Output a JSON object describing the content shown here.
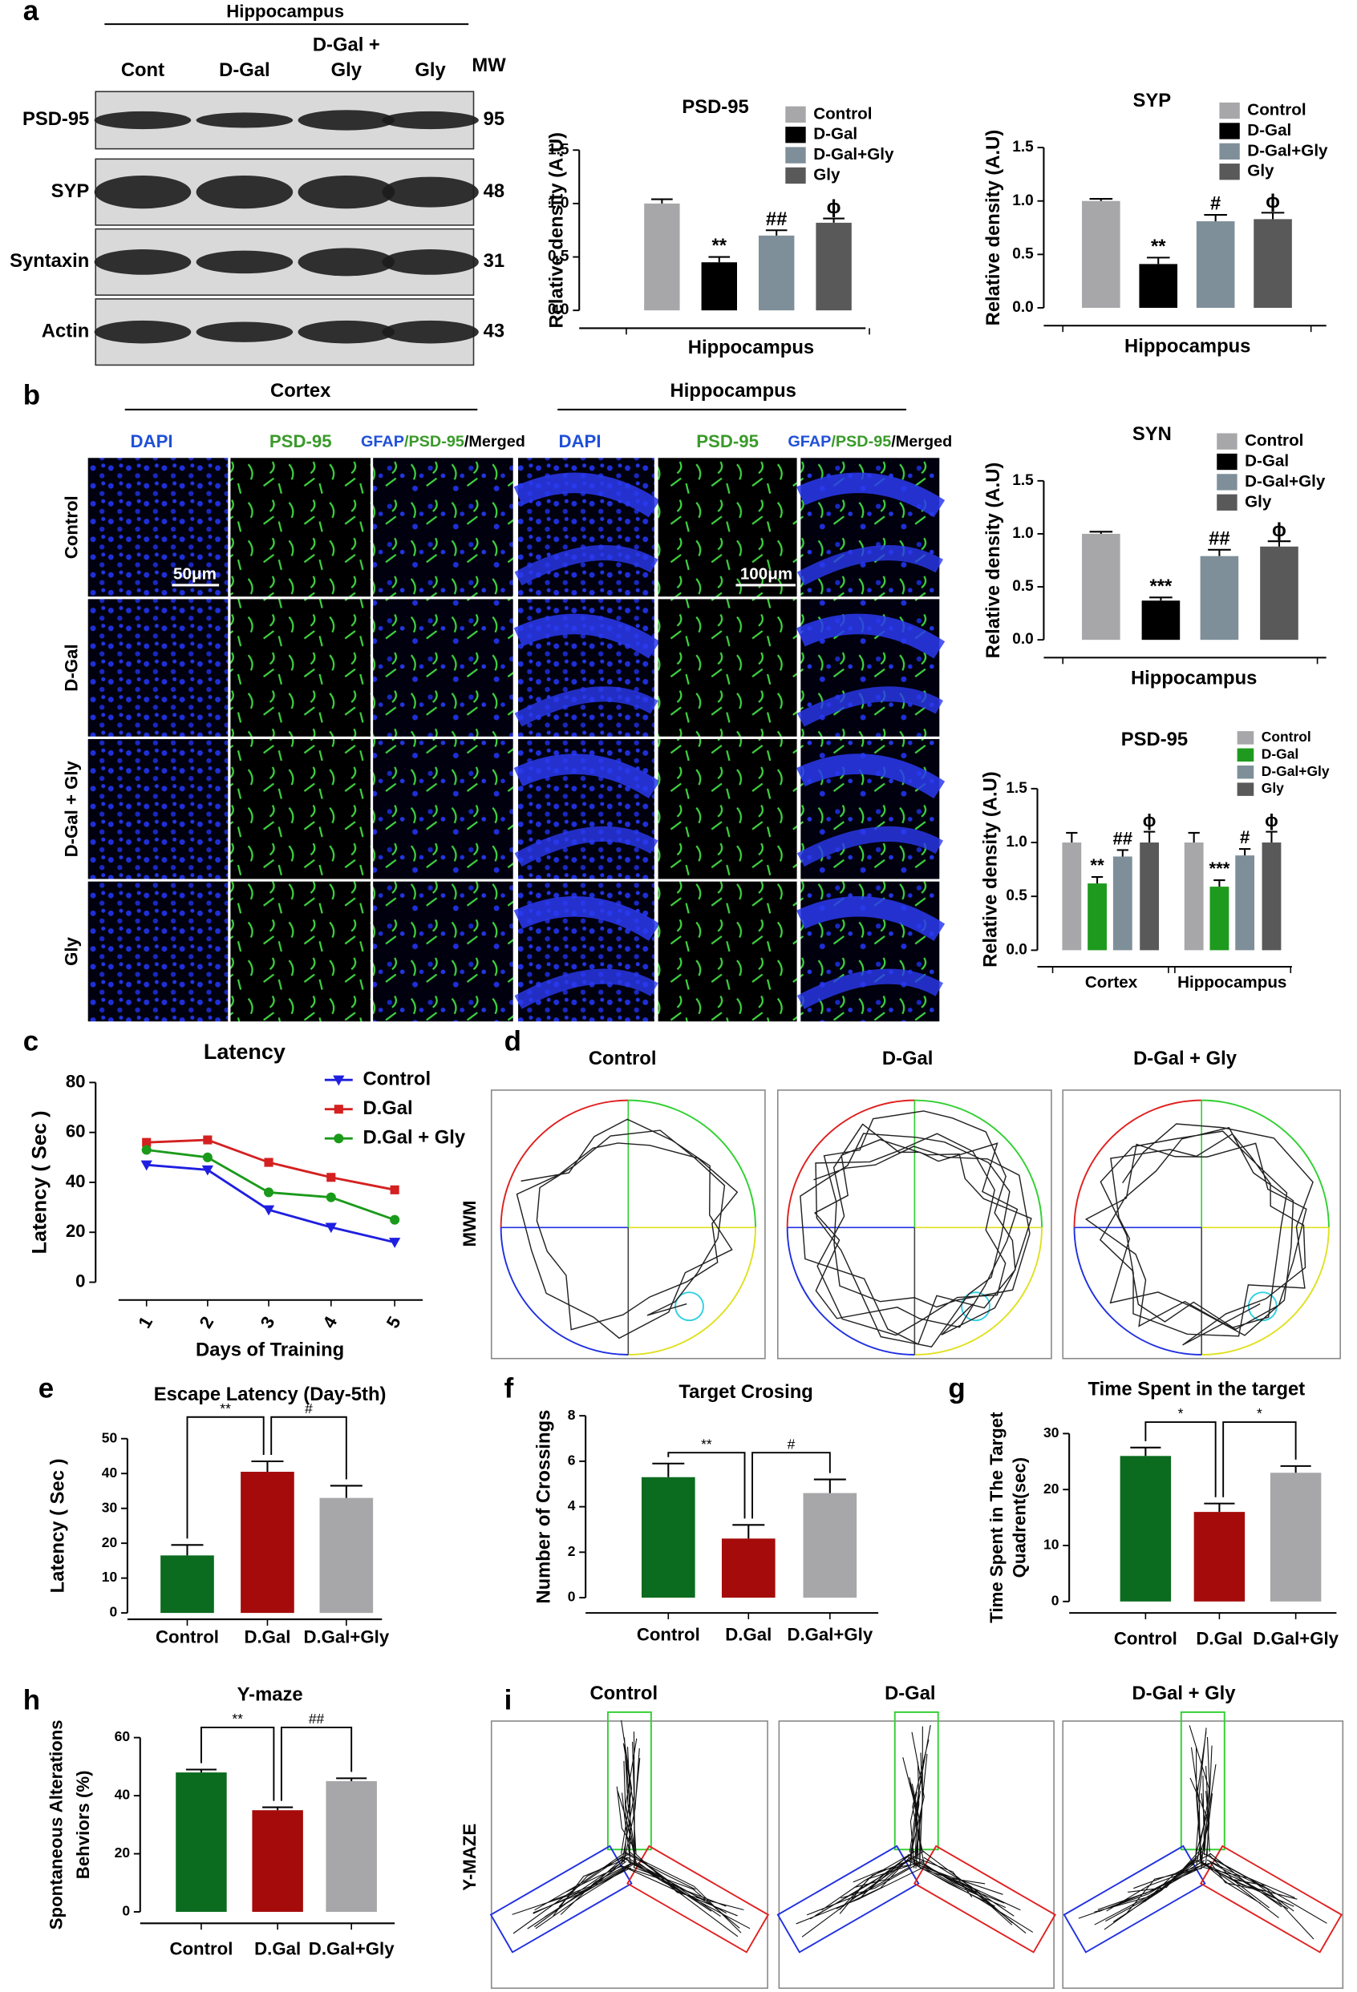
{
  "figure": {
    "panel_labels": [
      "a",
      "b",
      "c",
      "d",
      "e",
      "f",
      "g",
      "h",
      "i"
    ],
    "blot": {
      "region": "Hippocampus",
      "lane_labels": [
        [
          "Cont"
        ],
        [
          "D-Gal"
        ],
        [
          "D-Gal +",
          "Gly"
        ],
        [
          "Gly"
        ]
      ],
      "mw_header": "MW",
      "rows": [
        {
          "protein": "PSD-95",
          "mw": 95
        },
        {
          "protein": "SYP",
          "mw": 48
        },
        {
          "protein": "Syntaxin",
          "mw": 31
        },
        {
          "protein": "Actin",
          "mw": 43
        }
      ]
    },
    "microscopy": {
      "regions": [
        "Cortex",
        "Hippocampus"
      ],
      "channel_headers": [
        "DAPI",
        "PSD-95"
      ],
      "merged_header": [
        "GFAP",
        "/PSD-95",
        "/Merged"
      ],
      "rows": [
        "Control",
        "D-Gal",
        "D-Gal + Gly",
        "Gly"
      ],
      "scale_bars": [
        "50μm",
        "100μm"
      ]
    },
    "mwm": {
      "side_label": "MWM",
      "groups": [
        "Control",
        "D-Gal",
        "D-Gal + Gly"
      ]
    },
    "ymaze": {
      "side_label": "Y-MAZE",
      "groups": [
        "Control",
        "D-Gal",
        "D-Gal + Gly"
      ]
    }
  },
  "chart_data": [
    {
      "type": "bar",
      "title": "PSD-95",
      "y_label": "Relative density (A.U)",
      "categories": [
        "Hippocampus"
      ],
      "series": [
        {
          "name": "Control",
          "color": "#a7a7a9",
          "values": [
            1.0
          ],
          "errors": [
            0.04
          ],
          "significance": [
            null
          ]
        },
        {
          "name": "D-Gal",
          "color": "#000000",
          "values": [
            0.45
          ],
          "errors": [
            0.05
          ],
          "significance": [
            "**"
          ]
        },
        {
          "name": "D-Gal+Gly",
          "color": "#7f8f99",
          "values": [
            0.7
          ],
          "errors": [
            0.05
          ],
          "significance": [
            "##"
          ]
        },
        {
          "name": "Gly",
          "color": "#595959",
          "values": [
            0.82
          ],
          "errors": [
            0.04
          ],
          "significance": [
            "ϕ"
          ]
        }
      ],
      "ylim": [
        0,
        1.5
      ],
      "yticks": [
        {
          "value": 0,
          "label": "0.0"
        },
        0.5,
        {
          "value": 1,
          "label": "1.0"
        },
        1.5
      ]
    },
    {
      "type": "bar",
      "title": "SYP",
      "y_label": "Relative density (A.U)",
      "categories": [
        "Hippocampus"
      ],
      "series": [
        {
          "name": "Control",
          "color": "#a7a7a9",
          "values": [
            1.0
          ],
          "errors": [
            0.02
          ],
          "significance": [
            null
          ]
        },
        {
          "name": "D-Gal",
          "color": "#000000",
          "values": [
            0.41
          ],
          "errors": [
            0.06
          ],
          "significance": [
            "**"
          ]
        },
        {
          "name": "D-Gal+Gly",
          "color": "#7f8f99",
          "values": [
            0.81
          ],
          "errors": [
            0.06
          ],
          "significance": [
            "#"
          ]
        },
        {
          "name": "Gly",
          "color": "#595959",
          "values": [
            0.83
          ],
          "errors": [
            0.06
          ],
          "significance": [
            "ϕ"
          ]
        }
      ],
      "ylim": [
        0,
        1.5
      ],
      "yticks": [
        {
          "value": 0,
          "label": "0.0"
        },
        0.5,
        {
          "value": 1,
          "label": "1.0"
        },
        1.5
      ]
    },
    {
      "type": "bar",
      "title": "SYN",
      "y_label": "Relative density (A.U)",
      "categories": [
        "Hippocampus"
      ],
      "series": [
        {
          "name": "Control",
          "color": "#a7a7a9",
          "values": [
            1.0
          ],
          "errors": [
            0.02
          ],
          "significance": [
            null
          ]
        },
        {
          "name": "D-Gal",
          "color": "#000000",
          "values": [
            0.37
          ],
          "errors": [
            0.03
          ],
          "significance": [
            "***"
          ]
        },
        {
          "name": "D-Gal+Gly",
          "color": "#7f8f99",
          "values": [
            0.79
          ],
          "errors": [
            0.06
          ],
          "significance": [
            "##"
          ]
        },
        {
          "name": "Gly",
          "color": "#595959",
          "values": [
            0.88
          ],
          "errors": [
            0.05
          ],
          "significance": [
            "ϕ"
          ]
        }
      ],
      "ylim": [
        0,
        1.5
      ],
      "yticks": [
        {
          "value": 0,
          "label": "0.0"
        },
        0.5,
        {
          "value": 1,
          "label": "1.0"
        },
        1.5
      ]
    },
    {
      "type": "bar",
      "title": "PSD-95",
      "y_label": "Relative density (A.U)",
      "categories": [
        "Cortex",
        "Hippocampus"
      ],
      "series": [
        {
          "name": "Control",
          "color": "#a7a7a9",
          "values": [
            1.0,
            1.0
          ],
          "errors": [
            0.09,
            0.09
          ],
          "significance": [
            null,
            null
          ]
        },
        {
          "name": "D-Gal",
          "color": "#1e9a1e",
          "values": [
            0.62,
            0.59
          ],
          "errors": [
            0.06,
            0.06
          ],
          "significance": [
            "**",
            "***"
          ]
        },
        {
          "name": "D-Gal+Gly",
          "color": "#7f8f99",
          "values": [
            0.87,
            0.88
          ],
          "errors": [
            0.06,
            0.06
          ],
          "significance": [
            "##",
            "#"
          ]
        },
        {
          "name": "Gly",
          "color": "#595959",
          "values": [
            1.0,
            1.0
          ],
          "errors": [
            0.1,
            0.1
          ],
          "significance": [
            "ϕ",
            "ϕ"
          ]
        }
      ],
      "ylim": [
        0,
        1.5
      ],
      "yticks": [
        {
          "value": 0,
          "label": "0.0"
        },
        0.5,
        {
          "value": 1,
          "label": "1.0"
        },
        1.5
      ]
    },
    {
      "type": "line",
      "title": "Latency",
      "x_label": "Days of Training",
      "y_label": "Latency ( Sec )",
      "categories": [
        "1",
        "2",
        "3",
        "4",
        "5"
      ],
      "series": [
        {
          "name": "Control",
          "color": "#1f1fe0",
          "marker": "triangle-down",
          "values": [
            47,
            45,
            29,
            22,
            16
          ]
        },
        {
          "name": "D.Gal",
          "color": "#d42020",
          "marker": "square",
          "values": [
            56,
            57,
            48,
            42,
            37
          ]
        },
        {
          "name": "D.Gal + Gly",
          "color": "#1a9a1a",
          "marker": "circle",
          "values": [
            53,
            50,
            36,
            34,
            25
          ]
        }
      ],
      "ylim": [
        0,
        80
      ],
      "yticks": [
        0,
        20,
        40,
        60,
        80
      ]
    },
    {
      "type": "bar",
      "title": "Escape Latency (Day-5th)",
      "y_label": "Latency ( Sec )",
      "categories": [
        "Control",
        "D.Gal",
        "D.Gal+Gly"
      ],
      "values": [
        16.5,
        40.5,
        33
      ],
      "errors": [
        3,
        3,
        3.5
      ],
      "colors": [
        "#0b6b1f",
        "#a50b0b",
        "#a7a7a9"
      ],
      "comparisons": [
        {
          "from": 0,
          "to": 1,
          "label": "**"
        },
        {
          "from": 1,
          "to": 2,
          "label": "#"
        }
      ],
      "ylim": [
        0,
        50
      ],
      "yticks": [
        0,
        10,
        20,
        30,
        40,
        50
      ]
    },
    {
      "type": "bar",
      "title": "Target Crosing",
      "y_label": "Number of Crossings",
      "categories": [
        "Control",
        "D.Gal",
        "D.Gal+Gly"
      ],
      "values": [
        5.3,
        2.6,
        4.6
      ],
      "errors": [
        0.6,
        0.6,
        0.6
      ],
      "colors": [
        "#0b6b1f",
        "#a50b0b",
        "#a7a7a9"
      ],
      "comparisons": [
        {
          "from": 0,
          "to": 1,
          "label": "**"
        },
        {
          "from": 1,
          "to": 2,
          "label": "#"
        }
      ],
      "ylim": [
        0,
        8
      ],
      "yticks": [
        0,
        2,
        4,
        6,
        8
      ]
    },
    {
      "type": "bar",
      "title": "Time Spent in the target",
      "y_label": [
        "Time Spent in The Target",
        "Quadrent(sec)"
      ],
      "categories": [
        "Control",
        "D.Gal",
        "D.Gal+Gly"
      ],
      "values": [
        26,
        16,
        23
      ],
      "errors": [
        1.5,
        1.5,
        1.2
      ],
      "colors": [
        "#0b6b1f",
        "#a50b0b",
        "#a7a7a9"
      ],
      "comparisons": [
        {
          "from": 0,
          "to": 1,
          "label": "*"
        },
        {
          "from": 1,
          "to": 2,
          "label": "*"
        }
      ],
      "ylim": [
        0,
        30
      ],
      "yticks": [
        0,
        10,
        20,
        30
      ]
    },
    {
      "type": "bar",
      "title": "Y-maze",
      "y_label": [
        "Spontaneous Alterations",
        "Behviors (%)"
      ],
      "categories": [
        "Control",
        "D.Gal",
        "D.Gal+Gly"
      ],
      "values": [
        48,
        35,
        45
      ],
      "errors": [
        1,
        1,
        1
      ],
      "colors": [
        "#0b6b1f",
        "#a50b0b",
        "#a7a7a9"
      ],
      "comparisons": [
        {
          "from": 0,
          "to": 1,
          "label": "**"
        },
        {
          "from": 1,
          "to": 2,
          "label": "##"
        }
      ],
      "ylim": [
        0,
        60
      ],
      "yticks": [
        0,
        20,
        40,
        60
      ]
    }
  ]
}
